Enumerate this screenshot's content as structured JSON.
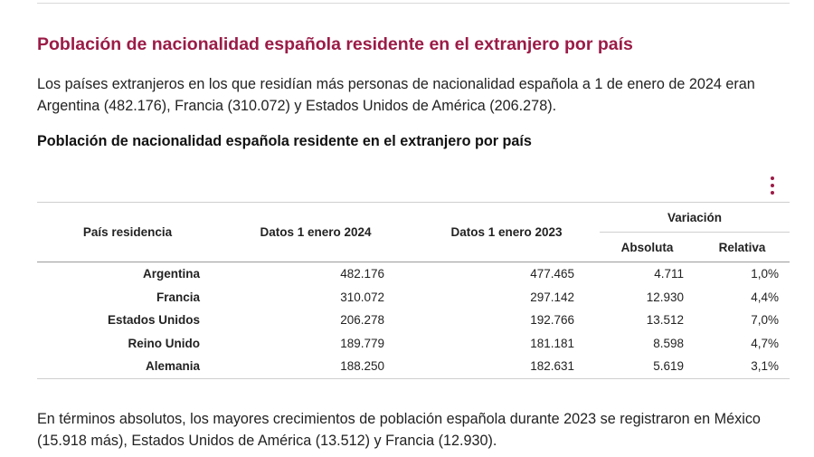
{
  "section_heading": "Población de nacionalidad española residente en el extranjero por país",
  "intro": "Los países extranjeros en los que residían más personas de nacionalidad española a 1 de enero de 2024 eran Argentina (482.176), Francia (310.072) y Estados Unidos de América (206.278).",
  "table": {
    "title": "Población de nacionalidad española residente en el extranjero por país",
    "menu_icon": "vertical-ellipsis-icon",
    "headers": {
      "country": "País residencia",
      "y2024": "Datos 1 enero 2024",
      "y2023": "Datos 1 enero 2023",
      "variation": "Variación",
      "absolute": "Absoluta",
      "relative": "Relativa"
    },
    "rows": [
      {
        "country": "Argentina",
        "y2024": "482.176",
        "y2023": "477.465",
        "absolute": "4.711",
        "relative": "1,0%"
      },
      {
        "country": "Francia",
        "y2024": "310.072",
        "y2023": "297.142",
        "absolute": "12.930",
        "relative": "4,4%"
      },
      {
        "country": "Estados Unidos",
        "y2024": "206.278",
        "y2023": "192.766",
        "absolute": "13.512",
        "relative": "7,0%"
      },
      {
        "country": "Reino Unido",
        "y2024": "189.779",
        "y2023": "181.181",
        "absolute": "8.598",
        "relative": "4,7%"
      },
      {
        "country": "Alemania",
        "y2024": "188.250",
        "y2023": "182.631",
        "absolute": "5.619",
        "relative": "3,1%"
      }
    ]
  },
  "outro": "En términos absolutos, los mayores crecimientos de población española durante 2023 se registraron en México (15.918 más), Estados Unidos de América (13.512) y Francia (12.930).",
  "colors": {
    "heading": "#9b1b47",
    "text": "#222222"
  }
}
